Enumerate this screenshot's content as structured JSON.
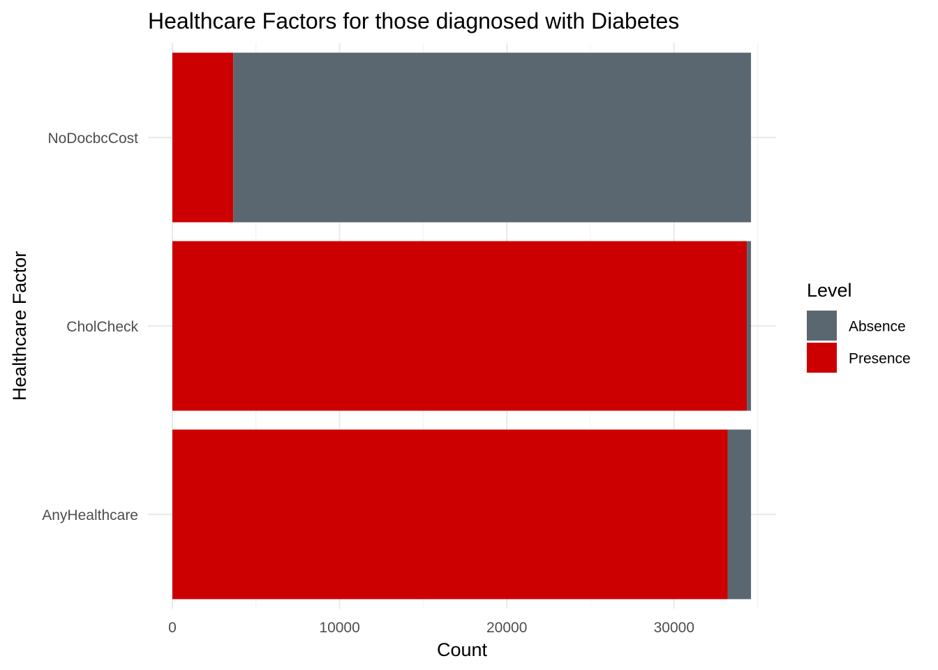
{
  "chart_data": {
    "type": "bar",
    "orientation": "horizontal",
    "stacked": true,
    "title": "Healthcare Factors for those diagnosed with Diabetes",
    "xlabel": "Count",
    "ylabel": "Healthcare Factor",
    "categories": [
      "NoDocbcCost",
      "CholCheck",
      "AnyHealthcare"
    ],
    "series": [
      {
        "name": "Presence",
        "color": "#cc0000",
        "values": [
          3640,
          34350,
          33200
        ]
      },
      {
        "name": "Absence",
        "color": "#5b6770",
        "values": [
          30960,
          250,
          1400
        ]
      }
    ],
    "xlim": [
      -1460,
      36100
    ],
    "xticks": [
      0,
      10000,
      20000,
      30000
    ],
    "xtick_labels": [
      "0",
      "10000",
      "20000",
      "30000"
    ],
    "legend": {
      "title": "Level",
      "position": "right",
      "items": [
        {
          "label": "Absence",
          "color": "#5b6770"
        },
        {
          "label": "Presence",
          "color": "#cc0000"
        }
      ]
    },
    "grid": true
  }
}
